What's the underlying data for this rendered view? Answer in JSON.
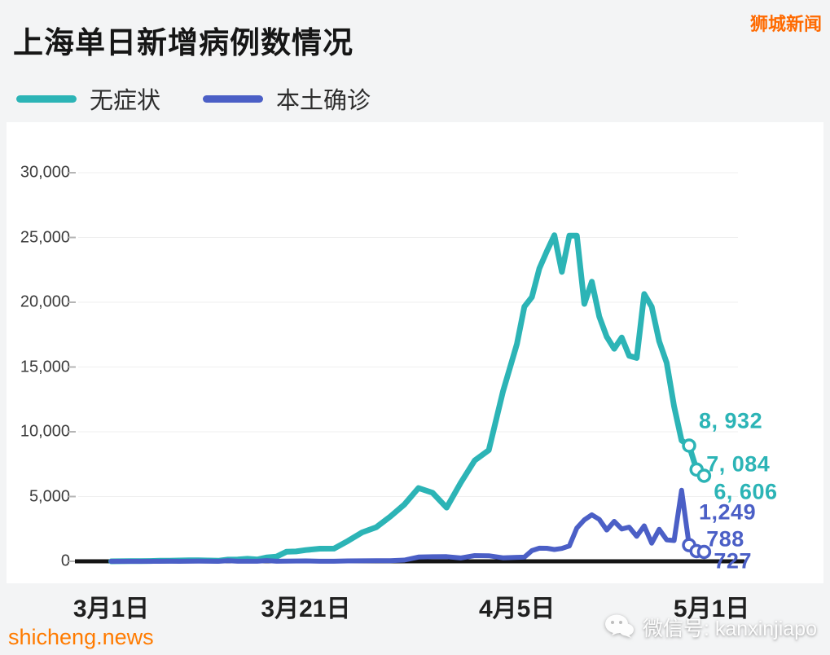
{
  "header": {
    "title": "上海单日新增病例数情况",
    "brand": "狮城新闻"
  },
  "legend": [
    {
      "label": "无症状",
      "color": "#2cb4b6"
    },
    {
      "label": "本土确诊",
      "color": "#4b5fc6"
    }
  ],
  "chart_data": {
    "type": "line",
    "title": "上海单日新增病例数情况",
    "xlabel": "",
    "ylabel": "",
    "ylim": [
      0,
      30000
    ],
    "grid": "faint-horizontal",
    "legend_position": "top-left",
    "dates": [
      "3月1日",
      "3月2日",
      "3月3日",
      "3月4日",
      "3月5日",
      "3月6日",
      "3月7日",
      "3月8日",
      "3月9日",
      "3月10日",
      "3月11日",
      "3月12日",
      "3月13日",
      "3月14日",
      "3月15日",
      "3月16日",
      "3月17日",
      "3月18日",
      "3月19日",
      "3月20日",
      "3月21日",
      "3月22日",
      "3月23日",
      "3月24日",
      "3月25日",
      "3月26日",
      "3月27日",
      "3月28日",
      "3月29日",
      "3月30日",
      "3月31日",
      "4月1日",
      "4月2日",
      "4月3日",
      "4月4日",
      "4月5日",
      "4月6日",
      "4月7日",
      "4月8日",
      "4月9日",
      "4月10日",
      "4月11日",
      "4月12日",
      "4月13日",
      "4月14日",
      "4月15日",
      "4月16日",
      "4月17日",
      "4月18日",
      "4月19日",
      "4月20日",
      "4月21日",
      "4月22日",
      "4月23日",
      "4月24日",
      "4月25日",
      "4月26日",
      "4月27日",
      "4月28日",
      "4月29日",
      "4月30日"
    ],
    "series": [
      {
        "name": "无症状",
        "color": "#2cb4b6",
        "values": [
          1,
          5,
          14,
          16,
          28,
          45,
          46,
          64,
          75,
          76,
          64,
          41,
          130,
          139,
          197,
          139,
          300,
          366,
          734,
          758,
          865,
          977,
          979,
          1580,
          2231,
          2631,
          3450,
          4381,
          5656,
          5298,
          4144,
          6051,
          7788,
          8581,
          13086,
          16766,
          19660,
          20398,
          22609,
          23937,
          25173,
          22348,
          25141,
          25146,
          19872,
          21582,
          18905,
          17332,
          16407,
          17277,
          15861,
          15698,
          20634,
          19657,
          16983,
          15319,
          11956,
          9330,
          8932,
          7084,
          6606
        ]
      },
      {
        "name": "本土确诊",
        "color": "#4b5fc6",
        "values": [
          1,
          3,
          2,
          3,
          0,
          3,
          4,
          3,
          4,
          11,
          5,
          1,
          41,
          9,
          5,
          8,
          57,
          8,
          17,
          24,
          31,
          4,
          4,
          29,
          38,
          45,
          50,
          96,
          326,
          355,
          358,
          260,
          438,
          425,
          268,
          311,
          322,
          824,
          1015,
          1006,
          914,
          994,
          1189,
          2573,
          3200,
          3590,
          3238,
          2417,
          3084,
          2494,
          2634,
          1931,
          2736,
          1401,
          2472,
          1661,
          1606,
          5487,
          1249,
          788,
          727
        ]
      }
    ],
    "y_ticks": {
      "values": [
        0,
        5000,
        10000,
        15000,
        20000,
        25000,
        30000
      ],
      "labels": [
        "0",
        "5,000",
        "10,000",
        "15,000",
        "20,000",
        "25,000",
        "30,000"
      ]
    },
    "x_ticks": [
      {
        "label": "3月1日",
        "day": 0,
        "f": 0.05
      },
      {
        "label": "3月21日",
        "day": 20,
        "f": 0.345
      },
      {
        "label": "4月5日",
        "day": 35,
        "f": 0.665
      },
      {
        "label": "5月1日",
        "day": 61,
        "f": 0.96
      }
    ],
    "end_labels": {
      "asymptomatic": [
        "8, 932",
        "7, 084",
        "6, 606"
      ],
      "confirmed": [
        "1,249",
        "788",
        "727"
      ]
    }
  },
  "footer": {
    "watermark_left": "shicheng.news",
    "watermark_right": "微信号: kanxinjiapo"
  }
}
